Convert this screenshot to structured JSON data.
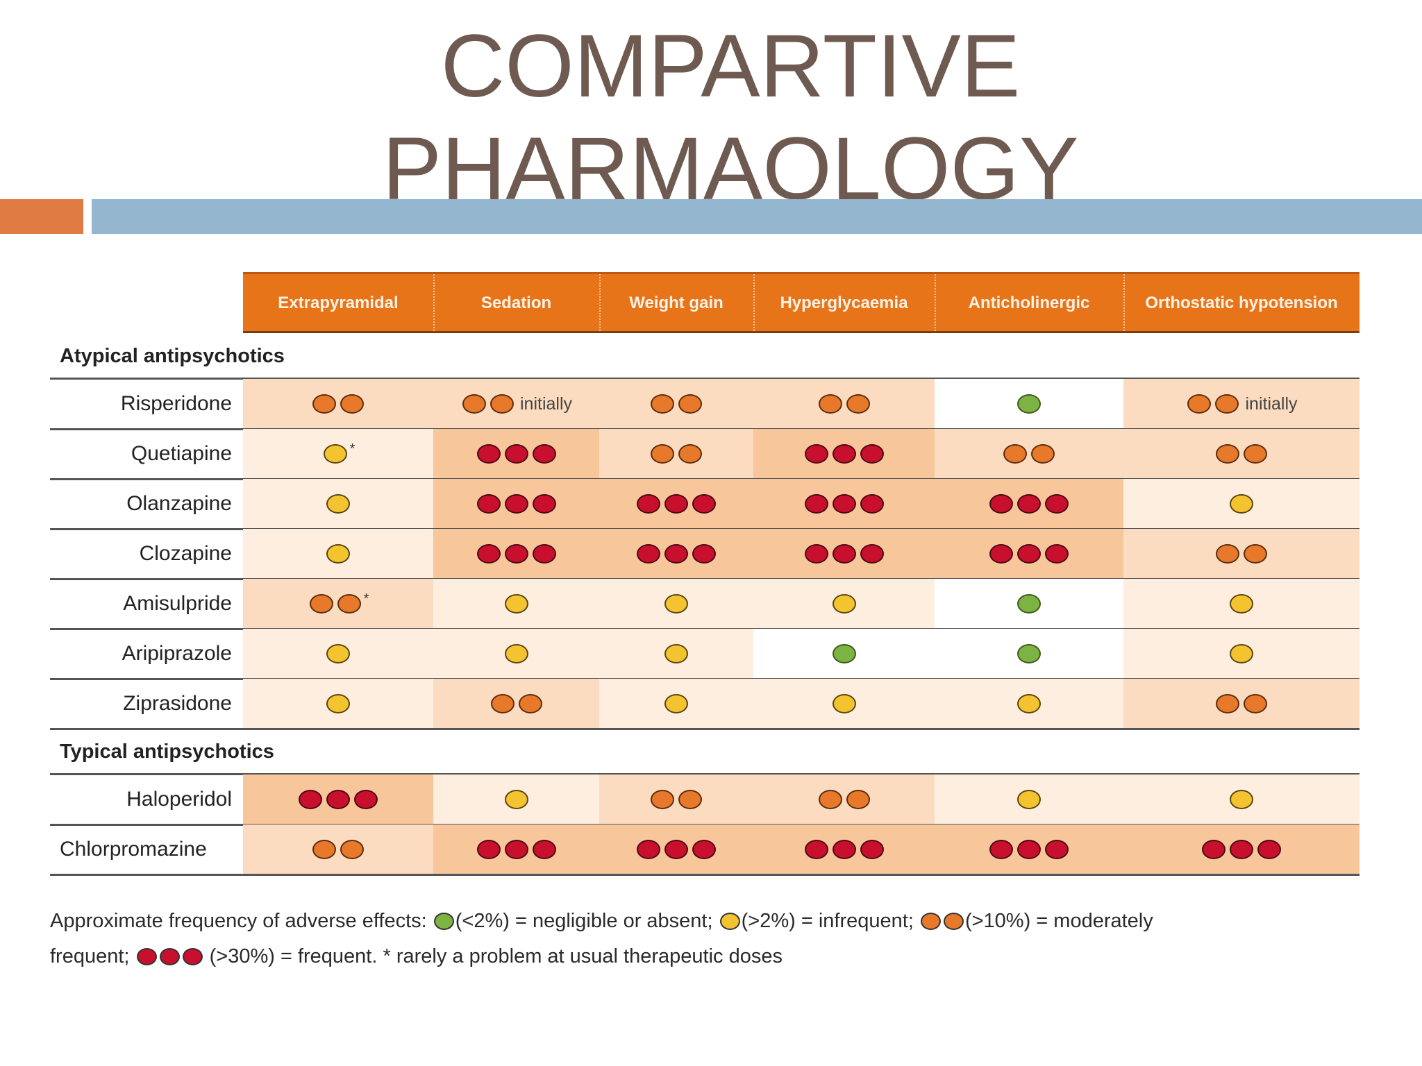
{
  "slide": {
    "title_line1": "COMPARTIVE",
    "title_line2": "PHARMAOLOGY"
  },
  "colors": {
    "negligible": "#7cb342",
    "infrequent": "#f4c430",
    "moderate": "#e8782a",
    "frequent": "#c8102e",
    "header": "#e8741a",
    "title": "#6e5a50"
  },
  "table": {
    "columns": [
      "Extrapyramidal",
      "Sedation",
      "Weight gain",
      "Hyperglycaemia",
      "Anticholinergic",
      "Orthostatic hypotension"
    ],
    "sections": [
      {
        "label": "Atypical antipsychotics",
        "rows": [
          {
            "name": "Risperidone",
            "cells": [
              {
                "level": 2
              },
              {
                "level": 2,
                "note": "initially"
              },
              {
                "level": 2
              },
              {
                "level": 2
              },
              {
                "level": 0
              },
              {
                "level": 2,
                "note": "initially"
              }
            ]
          },
          {
            "name": "Quetiapine",
            "cells": [
              {
                "level": 1,
                "star": "*"
              },
              {
                "level": 3
              },
              {
                "level": 2
              },
              {
                "level": 3
              },
              {
                "level": 2
              },
              {
                "level": 2
              }
            ]
          },
          {
            "name": "Olanzapine",
            "cells": [
              {
                "level": 1
              },
              {
                "level": 3
              },
              {
                "level": 3
              },
              {
                "level": 3
              },
              {
                "level": 3
              },
              {
                "level": 1
              }
            ]
          },
          {
            "name": "Clozapine",
            "cells": [
              {
                "level": 1
              },
              {
                "level": 3
              },
              {
                "level": 3
              },
              {
                "level": 3
              },
              {
                "level": 3
              },
              {
                "level": 2
              }
            ]
          },
          {
            "name": "Amisulpride",
            "cells": [
              {
                "level": 2,
                "star": "*"
              },
              {
                "level": 1
              },
              {
                "level": 1
              },
              {
                "level": 1
              },
              {
                "level": 0
              },
              {
                "level": 1
              }
            ]
          },
          {
            "name": "Aripiprazole",
            "cells": [
              {
                "level": 1
              },
              {
                "level": 1
              },
              {
                "level": 1
              },
              {
                "level": 0
              },
              {
                "level": 0
              },
              {
                "level": 1
              }
            ]
          },
          {
            "name": "Ziprasidone",
            "cells": [
              {
                "level": 1
              },
              {
                "level": 2
              },
              {
                "level": 1
              },
              {
                "level": 1
              },
              {
                "level": 1
              },
              {
                "level": 2
              }
            ]
          }
        ]
      },
      {
        "label": "Typical antipsychotics",
        "rows": [
          {
            "name": "Haloperidol",
            "cells": [
              {
                "level": 3
              },
              {
                "level": 1
              },
              {
                "level": 2
              },
              {
                "level": 2
              },
              {
                "level": 1
              },
              {
                "level": 1
              }
            ]
          },
          {
            "name": "Chlorpromazine",
            "cells": [
              {
                "level": 2
              },
              {
                "level": 3
              },
              {
                "level": 3
              },
              {
                "level": 3
              },
              {
                "level": 3
              },
              {
                "level": 3
              }
            ]
          }
        ]
      }
    ]
  },
  "legend": {
    "intro": "Approximate frequency of adverse effects:",
    "t1": "(<2%) = negligible or absent;",
    "t2": "(>2%) = infrequent;",
    "t3": "(>10%) = moderately",
    "t4a": "frequent;",
    "t4b": "(>30%) = frequent. * rarely a problem at usual therapeutic doses"
  }
}
